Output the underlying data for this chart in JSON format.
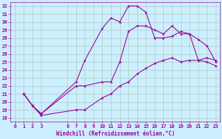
{
  "xlabel": "Windchill (Refroidissement éolien,°C)",
  "line_color": "#990099",
  "bg_color": "#cceeff",
  "grid_color": "#aaccbb",
  "xlim": [
    -0.5,
    23.5
  ],
  "ylim": [
    17.5,
    32.5
  ],
  "xticks": [
    0,
    1,
    2,
    3,
    6,
    7,
    8,
    9,
    10,
    11,
    12,
    13,
    14,
    15,
    16,
    17,
    18,
    19,
    20,
    21,
    22,
    23
  ],
  "yticks": [
    18,
    19,
    20,
    21,
    22,
    23,
    24,
    25,
    26,
    27,
    28,
    29,
    30,
    31,
    32
  ],
  "lines": [
    {
      "x": [
        1,
        2,
        3,
        7,
        8,
        10,
        11,
        12,
        13,
        14,
        15,
        16,
        17,
        18,
        19,
        20,
        21,
        22,
        23
      ],
      "y": [
        21,
        19.5,
        18.5,
        22.5,
        25.2,
        29.2,
        30.5,
        30.0,
        32.0,
        32.0,
        31.2,
        28.0,
        28.0,
        28.2,
        28.8,
        28.5,
        25.2,
        25.0,
        24.5
      ]
    },
    {
      "x": [
        1,
        2,
        3,
        7,
        8,
        10,
        11,
        12,
        13,
        14,
        15,
        16,
        17,
        18,
        19,
        20,
        21,
        22,
        23
      ],
      "y": [
        21,
        19.5,
        18.5,
        22.0,
        22.0,
        22.5,
        22.5,
        25.0,
        28.8,
        29.5,
        29.5,
        29.0,
        28.5,
        29.5,
        28.5,
        28.5,
        27.8,
        27.0,
        25.0
      ]
    },
    {
      "x": [
        1,
        2,
        3,
        7,
        8,
        10,
        11,
        12,
        13,
        14,
        15,
        16,
        17,
        18,
        19,
        20,
        21,
        22,
        23
      ],
      "y": [
        21,
        19.5,
        18.3,
        19.0,
        19.0,
        20.5,
        21.0,
        22.0,
        22.5,
        23.5,
        24.2,
        24.8,
        25.2,
        25.5,
        25.0,
        25.2,
        25.2,
        25.5,
        25.2
      ]
    }
  ]
}
